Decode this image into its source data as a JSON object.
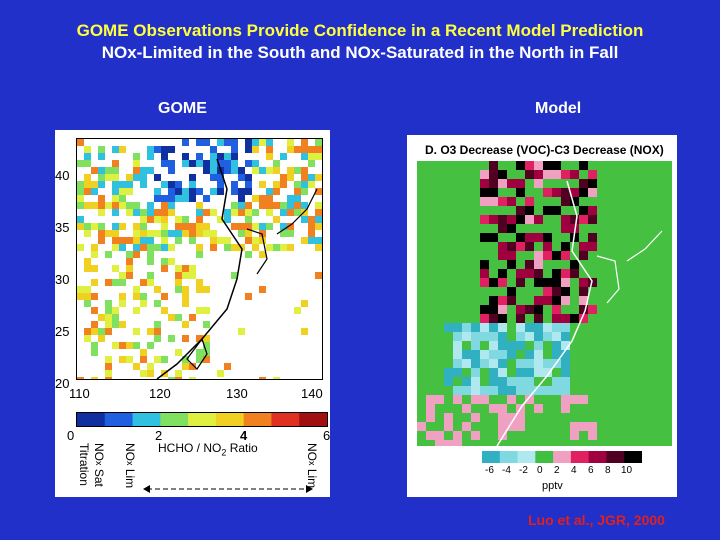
{
  "title_line1": "GOME Observations Provide Confidence in a Recent Model Prediction",
  "title_line2": "NOx-Limited in the South and NOx-Saturated in the North in Fall",
  "left_panel": {
    "label": "GOME",
    "lat_ticks": [
      "40",
      "35",
      "30",
      "25",
      "20"
    ],
    "lon_ticks": [
      "110",
      "120",
      "130",
      "140"
    ],
    "colorbar_ticks": [
      "0",
      "2",
      "4",
      "6"
    ],
    "ratio_label": "HCHO / NO",
    "ratio_sub": "2",
    "ratio_suffix": " Ratio",
    "regime_left_1": "NO",
    "regime_left_1_sub": "x",
    "regime_left_1_suffix": " Sat",
    "regime_left_2": "Titration",
    "regime_mid": "NO",
    "regime_mid_sub": "x",
    "regime_mid_suffix": " Lim",
    "regime_right": "NO",
    "regime_right_sub": "x",
    "regime_right_suffix": " Lim",
    "colors": [
      "#1030a0",
      "#2060e0",
      "#30c0e0",
      "#80e060",
      "#e0f040",
      "#f0d020",
      "#f08020",
      "#e03020",
      "#a01010"
    ]
  },
  "right_panel": {
    "label": "Model",
    "map_title": "D. O3 Decrease (VOC)-C3 Decrease (NOX)",
    "colorbar_ticks": [
      "-6",
      "-4",
      "-2",
      "0",
      "2",
      "4",
      "6",
      "8",
      "10"
    ],
    "unit": "pptv",
    "colors": [
      "#30b0c0",
      "#80d8e0",
      "#b0e8f0",
      "#40c040",
      "#f0a0c0",
      "#e02060",
      "#a00040",
      "#500020",
      "#000000"
    ]
  },
  "citation": "Luo et al., JGR, 2000"
}
